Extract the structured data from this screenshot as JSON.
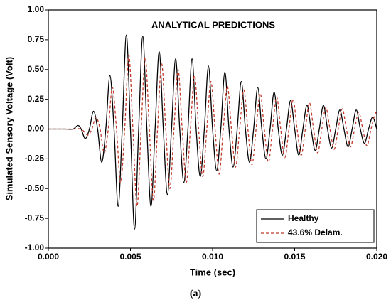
{
  "chart_data": {
    "type": "line",
    "title": "ANALYTICAL PREDICTIONS",
    "x_label": "Time (sec)",
    "y_label": "Simulated Sensory Voltage (Volt)",
    "caption": "(a)",
    "xlim": [
      0,
      0.02
    ],
    "ylim": [
      -1,
      1
    ],
    "xticks": [
      {
        "value": 0,
        "label": "0.000"
      },
      {
        "value": 0.005,
        "label": "0.005"
      },
      {
        "value": 0.01,
        "label": "0.010"
      },
      {
        "value": 0.015,
        "label": "0.015"
      },
      {
        "value": 0.02,
        "label": "0.020"
      }
    ],
    "yticks": [
      {
        "value": -1,
        "label": "-1.00"
      },
      {
        "value": -0.75,
        "label": "-0.75"
      },
      {
        "value": -0.5,
        "label": "-0.50"
      },
      {
        "value": -0.25,
        "label": "-0.25"
      },
      {
        "value": 0,
        "label": "0.00"
      },
      {
        "value": 0.25,
        "label": "0.25"
      },
      {
        "value": 0.5,
        "label": "0.50"
      },
      {
        "value": 0.75,
        "label": "0.75"
      },
      {
        "value": 1,
        "label": "1.00"
      }
    ],
    "legend": "bottom-right",
    "series": [
      {
        "name": "Healthy",
        "color": "#000000",
        "dash": "solid",
        "x": [
          0,
          0.001,
          0.0015,
          0.0018,
          0.002,
          0.00225,
          0.0025,
          0.00275,
          0.003,
          0.00325,
          0.0035,
          0.00375,
          0.004,
          0.00425,
          0.0045,
          0.00475,
          0.005,
          0.00525,
          0.0055,
          0.00575,
          0.006,
          0.00625,
          0.0065,
          0.00675,
          0.007,
          0.00725,
          0.0075,
          0.00775,
          0.008,
          0.00825,
          0.0085,
          0.00875,
          0.009,
          0.00925,
          0.0095,
          0.00975,
          0.01,
          0.01025,
          0.0105,
          0.01075,
          0.011,
          0.01125,
          0.0115,
          0.01175,
          0.012,
          0.01225,
          0.0125,
          0.01275,
          0.013,
          0.01325,
          0.0135,
          0.01375,
          0.014,
          0.01425,
          0.0145,
          0.01475,
          0.015,
          0.01525,
          0.0155,
          0.01575,
          0.016,
          0.01625,
          0.0165,
          0.01675,
          0.017,
          0.01725,
          0.0175,
          0.01775,
          0.018,
          0.01825,
          0.0185,
          0.01875,
          0.019,
          0.01925,
          0.0195,
          0.01975,
          0.02
        ],
        "values": [
          0,
          0,
          0,
          0.03,
          0,
          -0.08,
          0,
          0.15,
          0,
          -0.28,
          0,
          0.45,
          0,
          -0.65,
          0,
          0.79,
          0,
          -0.84,
          0,
          0.78,
          0,
          -0.65,
          0,
          0.65,
          0,
          -0.55,
          0,
          0.59,
          0,
          -0.45,
          0,
          0.59,
          0,
          -0.4,
          0,
          0.53,
          0,
          -0.35,
          0,
          0.48,
          0,
          -0.32,
          0,
          0.4,
          0,
          -0.28,
          0,
          0.35,
          0,
          -0.25,
          0,
          0.31,
          0,
          -0.22,
          0,
          0.24,
          0,
          -0.22,
          0,
          0.2,
          0,
          -0.18,
          0,
          0.2,
          0,
          -0.16,
          0,
          0.16,
          0,
          -0.15,
          0,
          0.16,
          0,
          -0.12,
          0,
          0.1,
          0
        ]
      },
      {
        "name": "43.6% Delam.",
        "color": "#c0392b",
        "dash": "dashed",
        "x": [
          0,
          0.001,
          0.0015,
          0.002,
          0.0024,
          0.00265,
          0.0029,
          0.00315,
          0.0034,
          0.00365,
          0.0039,
          0.00415,
          0.0044,
          0.00465,
          0.0049,
          0.00515,
          0.0054,
          0.00565,
          0.0059,
          0.00615,
          0.0064,
          0.00665,
          0.0069,
          0.00715,
          0.0074,
          0.00765,
          0.0079,
          0.00815,
          0.0084,
          0.00865,
          0.0089,
          0.00915,
          0.0094,
          0.00965,
          0.0099,
          0.01015,
          0.0104,
          0.01065,
          0.0109,
          0.01115,
          0.0114,
          0.01165,
          0.0119,
          0.01215,
          0.0124,
          0.01265,
          0.0129,
          0.01315,
          0.0134,
          0.01365,
          0.0139,
          0.01415,
          0.0144,
          0.01465,
          0.0149,
          0.01515,
          0.0154,
          0.01565,
          0.0159,
          0.01615,
          0.0164,
          0.01665,
          0.0169,
          0.01715,
          0.0174,
          0.01765,
          0.0179,
          0.01815,
          0.0184,
          0.01865,
          0.0189,
          0.01915,
          0.0194,
          0.01965,
          0.0199,
          0.02
        ],
        "values": [
          0,
          0,
          0,
          0,
          -0.05,
          0,
          0.1,
          0,
          -0.2,
          0,
          0.35,
          0,
          -0.45,
          0,
          0.62,
          0,
          -0.65,
          0,
          0.6,
          0,
          -0.6,
          0,
          0.55,
          0,
          -0.5,
          0,
          0.5,
          0,
          -0.45,
          0,
          0.45,
          0,
          -0.4,
          0,
          0.4,
          0,
          -0.38,
          0,
          0.36,
          0,
          -0.32,
          0,
          0.33,
          0,
          -0.3,
          0,
          0.3,
          0,
          -0.28,
          0,
          0.27,
          0,
          -0.25,
          0,
          0.25,
          0,
          -0.22,
          0,
          0.22,
          0,
          -0.2,
          0,
          0.18,
          0,
          -0.17,
          0,
          0.17,
          0,
          -0.15,
          0,
          0.14,
          0,
          -0.14,
          0,
          0.13,
          0.12
        ]
      }
    ]
  }
}
